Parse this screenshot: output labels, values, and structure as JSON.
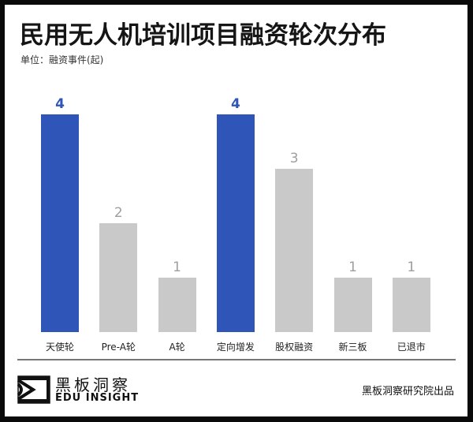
{
  "header": {
    "title": "民用无人机培训项目融资轮次分布",
    "unit": "单位：融资事件(起)"
  },
  "colors": {
    "highlight": "#2f55b8",
    "default": "#c9c9c9",
    "highlight_label": "#2f55b8",
    "default_label": "#9e9e9e"
  },
  "chart_data": {
    "type": "bar",
    "title": "民用无人机培训项目融资轮次分布",
    "subtitle": "单位：融资事件(起)",
    "xlabel": "",
    "ylabel": "融资事件(起)",
    "categories": [
      "天使轮",
      "Pre-A轮",
      "A轮",
      "定向增发",
      "股权融资",
      "新三板",
      "已退市"
    ],
    "values": [
      4,
      2,
      1,
      4,
      3,
      1,
      1
    ],
    "highlighted": [
      "天使轮",
      "定向增发"
    ],
    "ylim": [
      0,
      4
    ],
    "grid": false,
    "legend": null,
    "data_labels": [
      "4",
      "2",
      "1",
      "4",
      "3",
      "1",
      "1"
    ]
  },
  "footer": {
    "brand_cn": "黑板洞察",
    "brand_en": "EDU INSIGHT",
    "source": "黑板洞察研究院出品",
    "logo_icon": "eye-frame-logo-icon"
  }
}
